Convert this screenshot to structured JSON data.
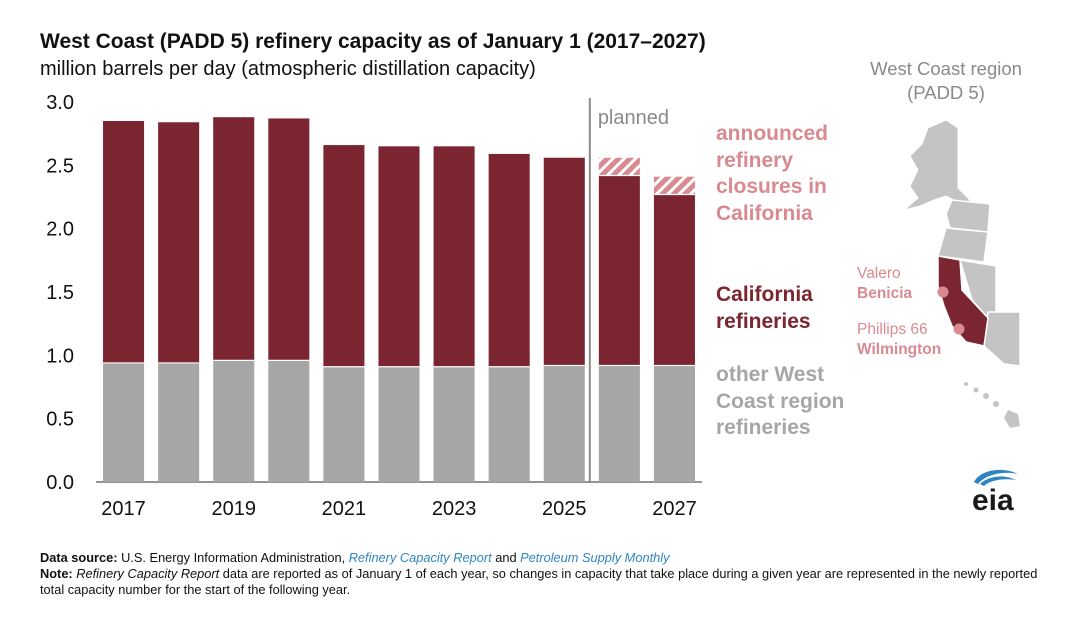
{
  "chart_data": {
    "type": "bar",
    "stacked": true,
    "title": "West Coast (PADD 5) refinery capacity as of January 1 (2017–2027)",
    "subtitle": "million barrels per day (atmospheric distillation capacity)",
    "categories": [
      "2017",
      "2018",
      "2019",
      "2020",
      "2021",
      "2022",
      "2023",
      "2024",
      "2025",
      "2026",
      "2027"
    ],
    "x_tick_labels": [
      "2017",
      "2019",
      "2021",
      "2023",
      "2025",
      "2027"
    ],
    "y_ticks": [
      "0.0",
      "0.5",
      "1.0",
      "1.5",
      "2.0",
      "2.5",
      "3.0"
    ],
    "ylim": [
      0,
      3.0
    ],
    "planned_label": "planned",
    "planned_from_index": 9,
    "series": [
      {
        "name": "other West Coast region refineries",
        "color": "#a6a6a6",
        "values": [
          0.94,
          0.94,
          0.96,
          0.96,
          0.91,
          0.91,
          0.91,
          0.91,
          0.92,
          0.92,
          0.92
        ]
      },
      {
        "name": "California refineries",
        "color": "#7b2530",
        "values": [
          1.91,
          1.9,
          1.92,
          1.91,
          1.75,
          1.74,
          1.74,
          1.68,
          1.64,
          1.5,
          1.35
        ]
      },
      {
        "name": "announced refinery closures in California",
        "color": "#d98a91",
        "pattern": "hatched",
        "values": [
          0,
          0,
          0,
          0,
          0,
          0,
          0,
          0,
          0,
          0.14,
          0.14
        ]
      }
    ],
    "legend": [
      {
        "label": "announced refinery closures in California",
        "color": "#d98a91"
      },
      {
        "label": "California refineries",
        "color": "#7b2530"
      },
      {
        "label": "other West Coast region refineries",
        "color": "#a6a6a6"
      }
    ]
  },
  "map": {
    "title": "West Coast region (PADD 5)",
    "refineries": [
      {
        "operator": "Valero",
        "site": "Benicia"
      },
      {
        "operator": "Phillips 66",
        "site": "Wilmington"
      }
    ]
  },
  "logo": {
    "text": "eia"
  },
  "footnote": {
    "source_label": "Data source:",
    "source_text_1": " U.S. Energy Information Administration, ",
    "source_link_1": "Refinery Capacity Report",
    "source_and": " and ",
    "source_link_2": "Petroleum Supply Monthly",
    "note_label": "Note:",
    "note_italic": "Refinery Capacity Report",
    "note_text": " data are reported as of January 1 of each year, so changes in capacity that take place during a given year are represented in the newly reported total capacity number for the start of the following year."
  }
}
